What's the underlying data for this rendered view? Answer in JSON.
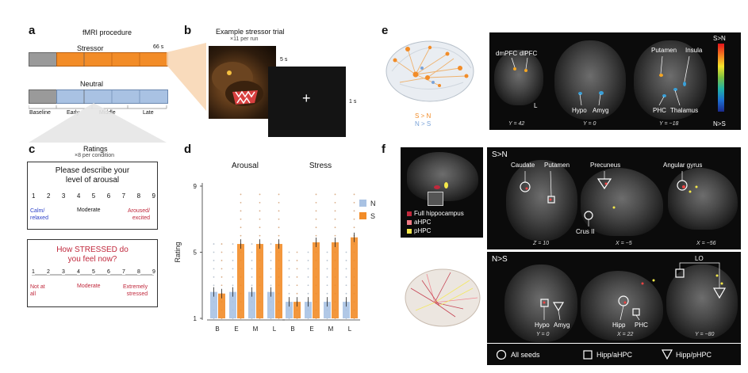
{
  "panel_letters": {
    "a": "a",
    "b": "b",
    "c": "c",
    "d": "d",
    "e": "e",
    "f": "f"
  },
  "panel_a": {
    "title": "fMRI procedure",
    "stressor_label": "Stressor",
    "duration_label": "66 s",
    "neutral_label": "Neutral",
    "phases": [
      "Baseline",
      "Early",
      "Middle",
      "Late"
    ],
    "colors": {
      "baseline": "#9a9a9a",
      "stressor": "#f28c28",
      "neutral": "#a9c2e3"
    }
  },
  "panel_b": {
    "title": "Example stressor trial",
    "subtitle": "×11 per run",
    "image_duration": "5 s",
    "fixation_duration": "1 s",
    "fixation_symbol": "+"
  },
  "panel_c": {
    "title": "Ratings",
    "subtitle": "×8 per condition",
    "arousal_question_line1": "Please describe your",
    "arousal_question_line2": "level of arousal",
    "scale_numbers": [
      "1",
      "2",
      "3",
      "4",
      "5",
      "6",
      "7",
      "8",
      "9"
    ],
    "arousal_anchor_low": "Calm/\nrelaxed",
    "arousal_anchor_mid": "Moderate",
    "arousal_anchor_high": "Aroused/\nexcited",
    "stress_question_line1": "How STRESSED do",
    "stress_question_line2": "you feel now?",
    "stress_anchor_low": "Not at\nall",
    "stress_anchor_mid": "Moderate",
    "stress_anchor_high": "Extremely\nstressed"
  },
  "panel_e": {
    "legend_sn": "S > N",
    "legend_ns": "N > S",
    "colorbar_top": "S>N",
    "colorbar_bottom": "N>S",
    "labels": {
      "dmPFC": "dmPFC",
      "dlPFC": "dlPFC",
      "L": "L",
      "y42": "Y = 42",
      "Hypo": "Hypo",
      "Amyg": "Amyg",
      "y0": "Y = 0",
      "Putamen": "Putamen",
      "Insula": "Insula",
      "Thalamus": "Thalamus",
      "PHC": "PHC",
      "y18": "Y = −18"
    }
  },
  "panel_f": {
    "legend": [
      "Full hippocampus",
      "aHPC",
      "pHPC"
    ],
    "legend_colors": [
      "#c0283c",
      "#f07a85",
      "#f5e94a"
    ],
    "sn_header": "S>N",
    "ns_header": "N>S",
    "sn_labels": {
      "caudate": "Caudate",
      "putamen": "Putamen",
      "precuneus": "Precuneus",
      "angular": "Angular gyrus",
      "crus": "Crus II",
      "z10": "Z = 10",
      "xm5": "X = −5",
      "xm56": "X = −56"
    },
    "ns_labels": {
      "lo": "LO",
      "hypo": "Hypo",
      "amyg": "Amyg",
      "hipp": "Hipp",
      "phc": "PHC",
      "y0": "Y = 0",
      "x22": "X = 22",
      "ym80": "Y = −80"
    },
    "shape_legend": [
      "All seeds",
      "Hipp/aHPC",
      "Hipp/pHPC"
    ]
  },
  "chart_data": {
    "type": "bar",
    "categories": [
      "B",
      "E",
      "M",
      "L"
    ],
    "ylabel": "Rating",
    "ylim": [
      1,
      9
    ],
    "yticks": [
      1,
      5,
      9
    ],
    "subplots": [
      {
        "title": "Arousal",
        "series": [
          {
            "name": "N",
            "color": "#a9c2e3",
            "values": [
              2.6,
              2.6,
              2.6,
              2.6
            ]
          },
          {
            "name": "S",
            "color": "#f28c28",
            "values": [
              2.5,
              5.5,
              5.5,
              5.5
            ]
          }
        ]
      },
      {
        "title": "Stress",
        "series": [
          {
            "name": "N",
            "color": "#a9c2e3",
            "values": [
              2.0,
              2.0,
              2.0,
              2.0
            ]
          },
          {
            "name": "S",
            "color": "#f28c28",
            "values": [
              2.0,
              5.6,
              5.6,
              5.9
            ]
          }
        ]
      }
    ],
    "legend": [
      "N",
      "S"
    ]
  }
}
